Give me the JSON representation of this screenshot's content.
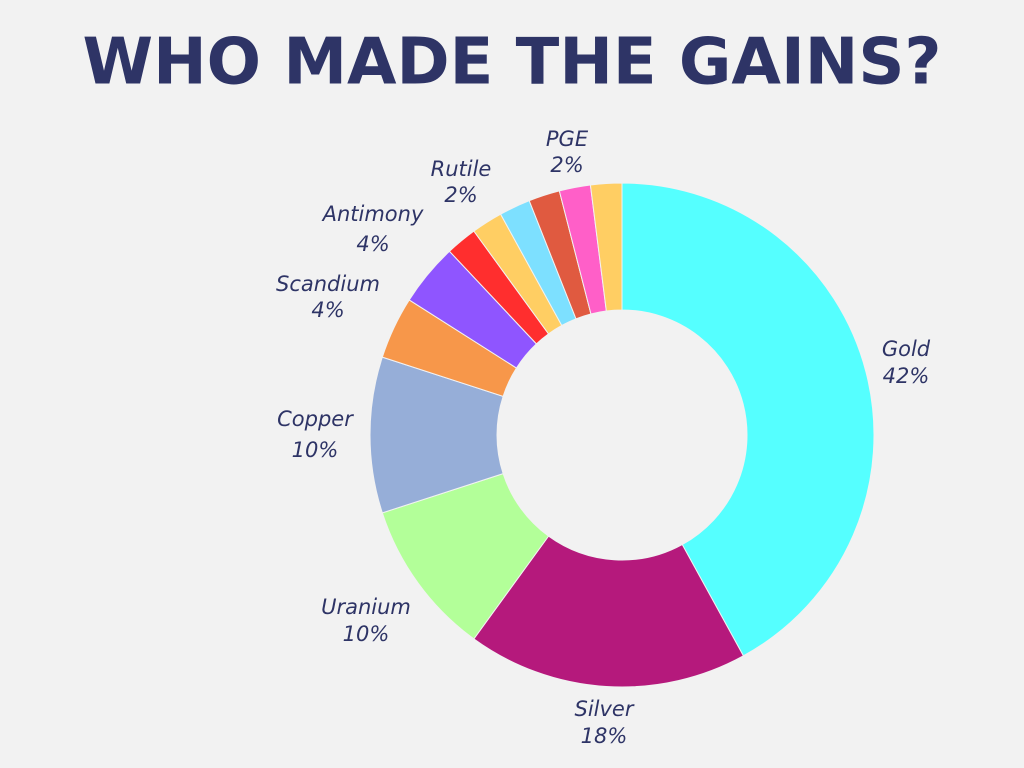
{
  "chart_data": {
    "type": "donut",
    "title": "WHO MADE THE GAINS?",
    "categories": [
      "Gold",
      "Silver",
      "Uranium",
      "Copper",
      "Scandium",
      "Antimony",
      null,
      null,
      null,
      "Rutile",
      "PGE",
      null
    ],
    "values": [
      42,
      18,
      10,
      10,
      4,
      4,
      2,
      2,
      2,
      2,
      2,
      2
    ],
    "value_labels": [
      "42%",
      "18%",
      "10%",
      "10%",
      "4%",
      "4%",
      null,
      null,
      null,
      "2%",
      "2%",
      null
    ],
    "colors": [
      "#55ffff",
      "#b5197c",
      "#b3ff99",
      "#96aed8",
      "#f7974a",
      "#8f55ff",
      "#ff2e2e",
      "#ffce63",
      "#7de0ff",
      "#e05a40",
      "#ff5fc8",
      "#ffce63"
    ]
  }
}
